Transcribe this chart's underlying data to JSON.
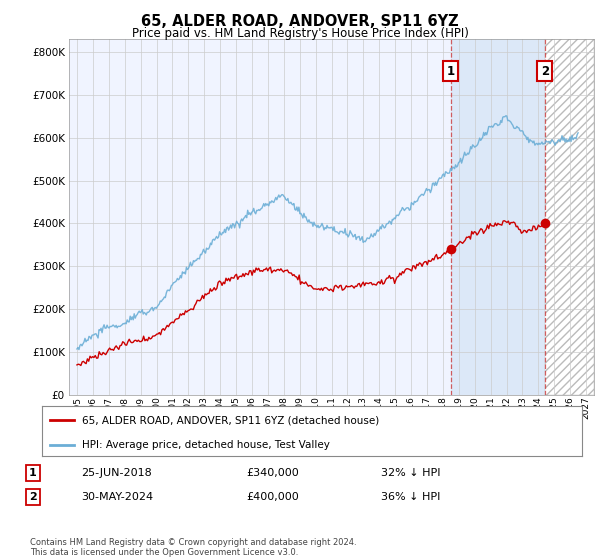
{
  "title": "65, ALDER ROAD, ANDOVER, SP11 6YZ",
  "subtitle": "Price paid vs. HM Land Registry's House Price Index (HPI)",
  "ylabel_ticks": [
    "£0",
    "£100K",
    "£200K",
    "£300K",
    "£400K",
    "£500K",
    "£600K",
    "£700K",
    "£800K"
  ],
  "ytick_values": [
    0,
    100000,
    200000,
    300000,
    400000,
    500000,
    600000,
    700000,
    800000
  ],
  "ylim": [
    0,
    830000
  ],
  "xlim_start": 1994.5,
  "xlim_end": 2027.5,
  "hpi_color": "#6baed6",
  "price_color": "#cc0000",
  "marker1_x": 2018.48,
  "marker1_y": 340000,
  "marker2_x": 2024.41,
  "marker2_y": 400000,
  "legend_red_label": "65, ALDER ROAD, ANDOVER, SP11 6YZ (detached house)",
  "legend_blue_label": "HPI: Average price, detached house, Test Valley",
  "table_row1": [
    "1",
    "25-JUN-2018",
    "£340,000",
    "32% ↓ HPI"
  ],
  "table_row2": [
    "2",
    "30-MAY-2024",
    "£400,000",
    "36% ↓ HPI"
  ],
  "footer": "Contains HM Land Registry data © Crown copyright and database right 2024.\nThis data is licensed under the Open Government Licence v3.0.",
  "grid_color": "#cccccc",
  "background_color": "#ffffff",
  "plot_bg_color": "#f0f4ff",
  "shade_color": "#dce8f8",
  "hatch_color": "#d8d8d8"
}
